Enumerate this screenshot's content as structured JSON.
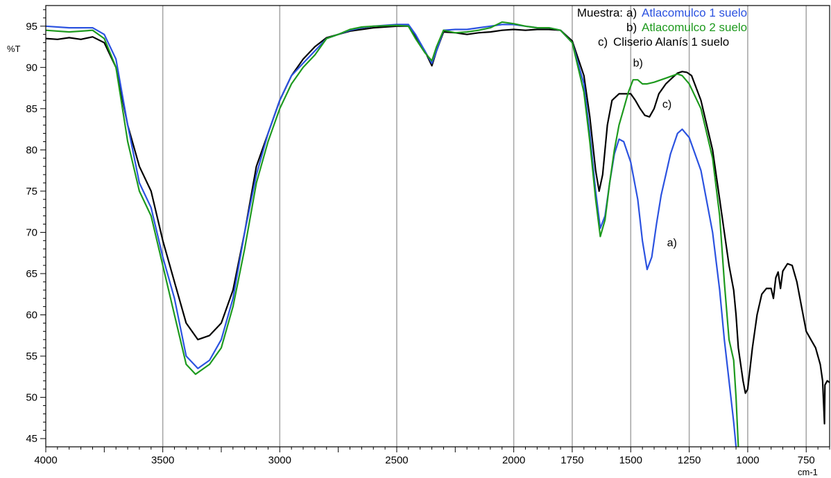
{
  "chart_data": {
    "type": "line",
    "title": "",
    "xlabel": "cm-1",
    "ylabel": "%T",
    "xlim": [
      4000,
      650
    ],
    "ylim": [
      44,
      97.5
    ],
    "x_reversed": true,
    "grid": "vertical",
    "xticks": [
      4000,
      3500,
      3000,
      2500,
      2000,
      1750,
      1500,
      1250,
      1000,
      750
    ],
    "xtick_labels": [
      "4000",
      "3500",
      "3000",
      "2500",
      "2000",
      "1750",
      "1500",
      "1250",
      "1000",
      "750"
    ],
    "yticks": [
      45,
      50,
      55,
      60,
      65,
      70,
      75,
      80,
      85,
      90,
      95
    ],
    "ytick_labels": [
      "45",
      "50",
      "55",
      "60",
      "65",
      "70",
      "75",
      "80",
      "85",
      "90",
      "95"
    ],
    "legend": {
      "placement": "top-right",
      "heading": "Muestra:",
      "entries": [
        {
          "tag": "a)",
          "label": "Atlacomulco 1 suelo",
          "color": "#2b52e0"
        },
        {
          "tag": "b)",
          "label": "Atlacomulco 2 suelo",
          "color": "#1e9a1e"
        },
        {
          "tag": "c)",
          "label": "Cliserio Alanís 1 suelo",
          "color": "#000000"
        }
      ]
    },
    "annotations": [
      {
        "text": "b)",
        "x": 1490,
        "y": 90.1
      },
      {
        "text": "c)",
        "x": 1365,
        "y": 85.1
      },
      {
        "text": "a)",
        "x": 1345,
        "y": 68.3
      }
    ],
    "series": [
      {
        "name": "a) Atlacomulco 1 suelo",
        "color": "#2b52e0",
        "points": [
          [
            4000,
            95
          ],
          [
            3900,
            94.8
          ],
          [
            3800,
            94.8
          ],
          [
            3750,
            94
          ],
          [
            3700,
            91
          ],
          [
            3650,
            83
          ],
          [
            3600,
            76
          ],
          [
            3550,
            73
          ],
          [
            3500,
            67
          ],
          [
            3450,
            62
          ],
          [
            3400,
            55
          ],
          [
            3350,
            53.5
          ],
          [
            3300,
            54.5
          ],
          [
            3250,
            57
          ],
          [
            3200,
            62
          ],
          [
            3150,
            70
          ],
          [
            3100,
            77
          ],
          [
            3050,
            82
          ],
          [
            3000,
            86
          ],
          [
            2950,
            89
          ],
          [
            2900,
            90.5
          ],
          [
            2850,
            92
          ],
          [
            2800,
            93.5
          ],
          [
            2750,
            94
          ],
          [
            2700,
            94.5
          ],
          [
            2650,
            94.8
          ],
          [
            2600,
            95
          ],
          [
            2500,
            95.2
          ],
          [
            2450,
            95.2
          ],
          [
            2420,
            94
          ],
          [
            2400,
            93
          ],
          [
            2370,
            91.5
          ],
          [
            2350,
            90.5
          ],
          [
            2330,
            92
          ],
          [
            2300,
            94.5
          ],
          [
            2250,
            94.6
          ],
          [
            2200,
            94.6
          ],
          [
            2150,
            94.8
          ],
          [
            2100,
            95
          ],
          [
            2050,
            95.2
          ],
          [
            2000,
            95.2
          ],
          [
            1950,
            95
          ],
          [
            1900,
            94.8
          ],
          [
            1850,
            94.8
          ],
          [
            1800,
            94.5
          ],
          [
            1750,
            93
          ],
          [
            1700,
            88
          ],
          [
            1675,
            82
          ],
          [
            1650,
            75
          ],
          [
            1630,
            70.5
          ],
          [
            1610,
            72
          ],
          [
            1590,
            76
          ],
          [
            1570,
            79.5
          ],
          [
            1550,
            81.3
          ],
          [
            1530,
            81
          ],
          [
            1500,
            78.5
          ],
          [
            1470,
            74
          ],
          [
            1450,
            69
          ],
          [
            1430,
            65.5
          ],
          [
            1410,
            67
          ],
          [
            1390,
            71
          ],
          [
            1370,
            74.5
          ],
          [
            1350,
            77
          ],
          [
            1330,
            79.5
          ],
          [
            1300,
            82
          ],
          [
            1280,
            82.5
          ],
          [
            1250,
            81.5
          ],
          [
            1200,
            77.5
          ],
          [
            1150,
            70
          ],
          [
            1120,
            63
          ],
          [
            1100,
            57
          ],
          [
            1080,
            52
          ],
          [
            1060,
            47
          ],
          [
            1050,
            44
          ]
        ]
      },
      {
        "name": "b) Atlacomulco 2 suelo",
        "color": "#1e9a1e",
        "points": [
          [
            4000,
            94.5
          ],
          [
            3900,
            94.3
          ],
          [
            3800,
            94.5
          ],
          [
            3750,
            93.5
          ],
          [
            3700,
            90
          ],
          [
            3650,
            81
          ],
          [
            3600,
            75
          ],
          [
            3550,
            72
          ],
          [
            3500,
            66
          ],
          [
            3450,
            60
          ],
          [
            3400,
            54
          ],
          [
            3360,
            52.8
          ],
          [
            3300,
            54
          ],
          [
            3250,
            56
          ],
          [
            3200,
            61
          ],
          [
            3150,
            68
          ],
          [
            3100,
            76
          ],
          [
            3050,
            81
          ],
          [
            3000,
            85
          ],
          [
            2950,
            88
          ],
          [
            2900,
            90
          ],
          [
            2850,
            91.5
          ],
          [
            2800,
            93.5
          ],
          [
            2750,
            94
          ],
          [
            2700,
            94.6
          ],
          [
            2650,
            94.9
          ],
          [
            2600,
            95
          ],
          [
            2500,
            95.1
          ],
          [
            2450,
            95
          ],
          [
            2420,
            93.5
          ],
          [
            2380,
            91.8
          ],
          [
            2350,
            90.8
          ],
          [
            2330,
            92.5
          ],
          [
            2300,
            94.5
          ],
          [
            2250,
            94.2
          ],
          [
            2200,
            94.3
          ],
          [
            2150,
            94.5
          ],
          [
            2100,
            94.8
          ],
          [
            2050,
            95.5
          ],
          [
            2000,
            95.3
          ],
          [
            1950,
            95
          ],
          [
            1900,
            94.8
          ],
          [
            1850,
            94.8
          ],
          [
            1800,
            94.5
          ],
          [
            1750,
            93
          ],
          [
            1700,
            87
          ],
          [
            1675,
            81
          ],
          [
            1650,
            74
          ],
          [
            1630,
            69.5
          ],
          [
            1610,
            71.5
          ],
          [
            1590,
            76
          ],
          [
            1570,
            80
          ],
          [
            1550,
            83
          ],
          [
            1530,
            85
          ],
          [
            1510,
            87
          ],
          [
            1490,
            88.5
          ],
          [
            1470,
            88.5
          ],
          [
            1450,
            88
          ],
          [
            1430,
            88
          ],
          [
            1400,
            88.2
          ],
          [
            1350,
            88.7
          ],
          [
            1300,
            89.2
          ],
          [
            1280,
            89
          ],
          [
            1250,
            88
          ],
          [
            1200,
            85
          ],
          [
            1150,
            79
          ],
          [
            1120,
            72
          ],
          [
            1100,
            64
          ],
          [
            1080,
            57
          ],
          [
            1060,
            54.5
          ],
          [
            1050,
            50
          ],
          [
            1040,
            44
          ]
        ]
      },
      {
        "name": "c) Cliserio Alanís 1 suelo",
        "color": "#000000",
        "points": [
          [
            4000,
            93.5
          ],
          [
            3950,
            93.4
          ],
          [
            3900,
            93.6
          ],
          [
            3850,
            93.4
          ],
          [
            3800,
            93.7
          ],
          [
            3750,
            93
          ],
          [
            3700,
            90
          ],
          [
            3650,
            83
          ],
          [
            3600,
            78
          ],
          [
            3550,
            75
          ],
          [
            3500,
            69
          ],
          [
            3450,
            64
          ],
          [
            3400,
            59
          ],
          [
            3350,
            57
          ],
          [
            3300,
            57.5
          ],
          [
            3250,
            59
          ],
          [
            3200,
            63
          ],
          [
            3150,
            70
          ],
          [
            3100,
            78
          ],
          [
            3050,
            82
          ],
          [
            3000,
            86
          ],
          [
            2950,
            89
          ],
          [
            2900,
            91
          ],
          [
            2850,
            92.5
          ],
          [
            2800,
            93.6
          ],
          [
            2750,
            94
          ],
          [
            2700,
            94.4
          ],
          [
            2650,
            94.6
          ],
          [
            2600,
            94.8
          ],
          [
            2500,
            95
          ],
          [
            2450,
            95
          ],
          [
            2420,
            93.8
          ],
          [
            2380,
            92
          ],
          [
            2350,
            90.2
          ],
          [
            2330,
            92
          ],
          [
            2300,
            94.3
          ],
          [
            2250,
            94.2
          ],
          [
            2200,
            94
          ],
          [
            2150,
            94.2
          ],
          [
            2100,
            94.3
          ],
          [
            2050,
            94.5
          ],
          [
            2000,
            94.6
          ],
          [
            1950,
            94.5
          ],
          [
            1900,
            94.6
          ],
          [
            1850,
            94.6
          ],
          [
            1800,
            94.5
          ],
          [
            1750,
            93.2
          ],
          [
            1700,
            89
          ],
          [
            1675,
            84
          ],
          [
            1650,
            77.5
          ],
          [
            1635,
            75
          ],
          [
            1620,
            77
          ],
          [
            1600,
            83
          ],
          [
            1580,
            86
          ],
          [
            1550,
            86.8
          ],
          [
            1520,
            86.8
          ],
          [
            1500,
            86.8
          ],
          [
            1480,
            86
          ],
          [
            1460,
            85
          ],
          [
            1440,
            84.2
          ],
          [
            1420,
            84
          ],
          [
            1400,
            85
          ],
          [
            1380,
            86.8
          ],
          [
            1350,
            88
          ],
          [
            1320,
            88.8
          ],
          [
            1300,
            89.3
          ],
          [
            1280,
            89.5
          ],
          [
            1260,
            89.4
          ],
          [
            1240,
            89
          ],
          [
            1200,
            86
          ],
          [
            1150,
            80
          ],
          [
            1120,
            74
          ],
          [
            1100,
            70
          ],
          [
            1080,
            66
          ],
          [
            1060,
            63
          ],
          [
            1050,
            60
          ],
          [
            1040,
            56
          ],
          [
            1020,
            52
          ],
          [
            1010,
            50.5
          ],
          [
            1000,
            51
          ],
          [
            980,
            56
          ],
          [
            960,
            60
          ],
          [
            940,
            62.5
          ],
          [
            920,
            63.2
          ],
          [
            900,
            63.2
          ],
          [
            890,
            62
          ],
          [
            880,
            64.5
          ],
          [
            870,
            65.2
          ],
          [
            860,
            63.2
          ],
          [
            850,
            65.3
          ],
          [
            830,
            66.2
          ],
          [
            810,
            66
          ],
          [
            790,
            64
          ],
          [
            770,
            61
          ],
          [
            750,
            58
          ],
          [
            730,
            57
          ],
          [
            710,
            56
          ],
          [
            690,
            54
          ],
          [
            680,
            52
          ],
          [
            672,
            46.8
          ],
          [
            670,
            51.5
          ],
          [
            660,
            52
          ],
          [
            650,
            51.8
          ]
        ]
      }
    ]
  }
}
